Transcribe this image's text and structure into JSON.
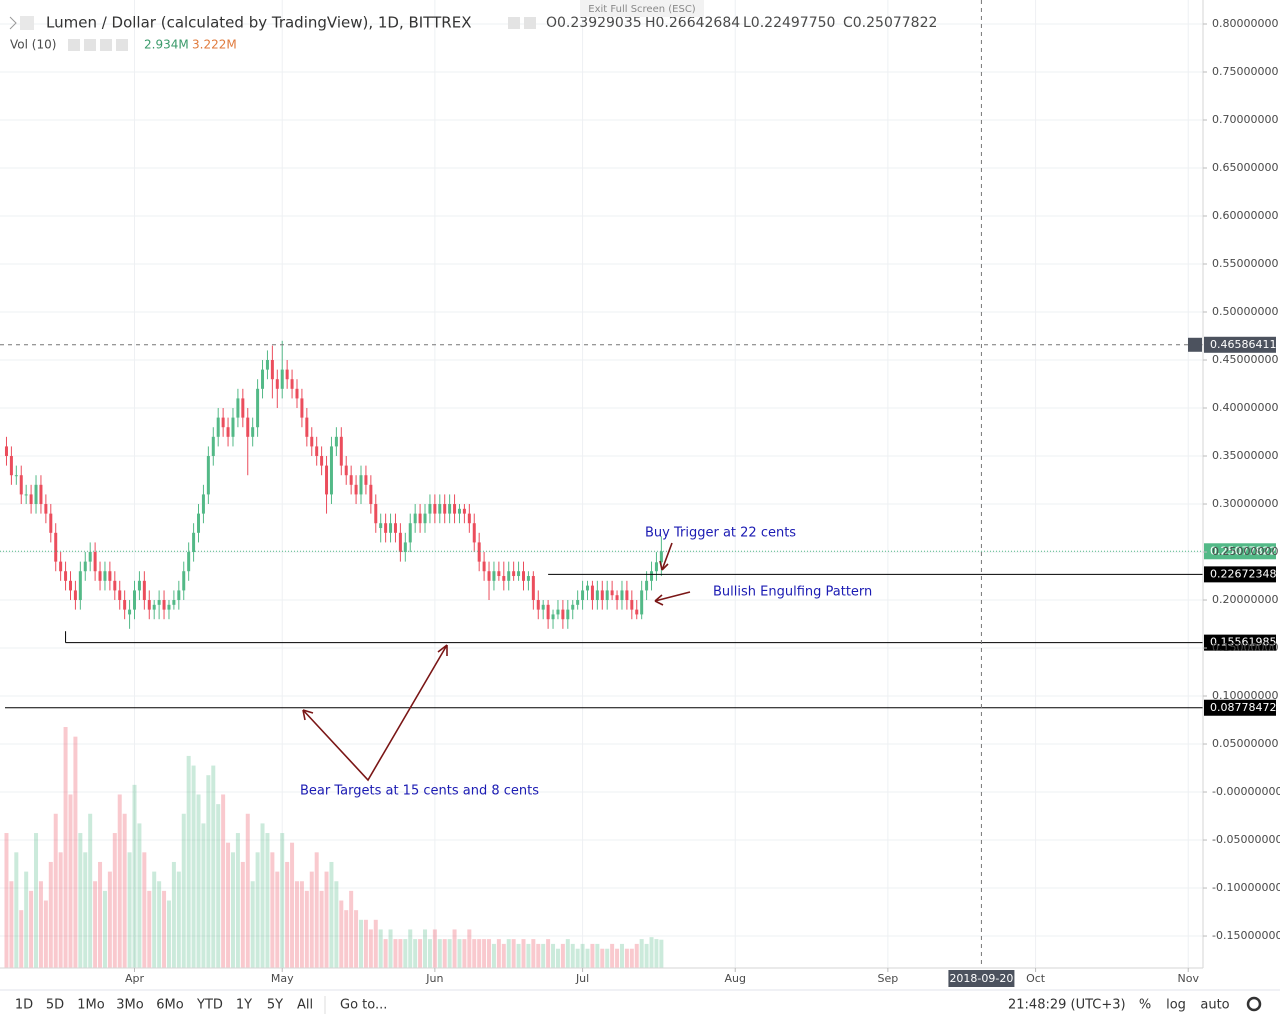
{
  "chart_data": {
    "type": "candlestick",
    "title": "Lumen / Dollar (calculated by TradingView), 1D, BITTREX",
    "ohlc": [
      "O0.23929035",
      "H0.26642684",
      "L0.22497750",
      "C0.25077822"
    ],
    "volume_label": "Vol (10)",
    "volume_readouts": [
      "2.934M",
      "3.222M"
    ],
    "x": [
      0,
      1,
      2,
      3,
      4,
      5,
      6,
      7,
      8,
      9,
      10,
      11,
      12,
      13,
      14,
      15,
      16,
      17,
      18,
      19,
      20,
      21,
      22,
      23,
      24,
      25,
      26,
      27,
      28,
      29,
      30,
      31,
      32,
      33,
      34,
      35,
      36,
      37,
      38,
      39,
      40,
      41,
      42,
      43,
      44,
      45,
      46,
      47,
      48,
      49,
      50,
      51,
      52,
      53,
      54,
      55,
      56,
      57,
      58,
      59,
      60,
      61,
      62,
      63,
      64,
      65,
      66,
      67,
      68,
      69,
      70,
      71,
      72,
      73,
      74,
      75,
      76,
      77,
      78,
      79,
      80,
      81,
      82,
      83,
      84,
      85,
      86,
      87,
      88,
      89,
      90,
      91,
      92,
      93,
      94,
      95,
      96,
      97,
      98,
      99,
      100,
      101,
      102,
      103,
      104,
      105,
      106,
      107,
      108,
      109,
      110,
      111,
      112,
      113,
      114,
      115,
      116,
      117,
      118,
      119,
      120,
      121,
      122,
      123,
      124,
      125,
      126,
      127,
      128,
      129,
      130,
      131,
      132,
      133
    ],
    "candles": [
      [
        0.36,
        0.37,
        0.34,
        0.35
      ],
      [
        0.35,
        0.36,
        0.32,
        0.33
      ],
      [
        0.33,
        0.34,
        0.32,
        0.33
      ],
      [
        0.33,
        0.34,
        0.3,
        0.31
      ],
      [
        0.31,
        0.32,
        0.3,
        0.31
      ],
      [
        0.31,
        0.32,
        0.29,
        0.3
      ],
      [
        0.3,
        0.33,
        0.29,
        0.32
      ],
      [
        0.32,
        0.33,
        0.29,
        0.3
      ],
      [
        0.3,
        0.31,
        0.28,
        0.29
      ],
      [
        0.29,
        0.3,
        0.26,
        0.27
      ],
      [
        0.27,
        0.28,
        0.23,
        0.24
      ],
      [
        0.24,
        0.25,
        0.22,
        0.23
      ],
      [
        0.23,
        0.24,
        0.21,
        0.22
      ],
      [
        0.22,
        0.23,
        0.2,
        0.21
      ],
      [
        0.21,
        0.22,
        0.19,
        0.2
      ],
      [
        0.2,
        0.24,
        0.19,
        0.23
      ],
      [
        0.23,
        0.25,
        0.22,
        0.24
      ],
      [
        0.24,
        0.26,
        0.23,
        0.25
      ],
      [
        0.25,
        0.26,
        0.22,
        0.23
      ],
      [
        0.23,
        0.24,
        0.21,
        0.22
      ],
      [
        0.22,
        0.24,
        0.21,
        0.23
      ],
      [
        0.23,
        0.24,
        0.21,
        0.22
      ],
      [
        0.22,
        0.23,
        0.2,
        0.21
      ],
      [
        0.21,
        0.22,
        0.19,
        0.2
      ],
      [
        0.2,
        0.21,
        0.18,
        0.19
      ],
      [
        0.185,
        0.2,
        0.17,
        0.19
      ],
      [
        0.19,
        0.22,
        0.18,
        0.21
      ],
      [
        0.21,
        0.23,
        0.2,
        0.22
      ],
      [
        0.22,
        0.23,
        0.19,
        0.2
      ],
      [
        0.2,
        0.21,
        0.18,
        0.19
      ],
      [
        0.19,
        0.2,
        0.18,
        0.195
      ],
      [
        0.195,
        0.21,
        0.18,
        0.2
      ],
      [
        0.2,
        0.21,
        0.18,
        0.19
      ],
      [
        0.19,
        0.2,
        0.18,
        0.195
      ],
      [
        0.195,
        0.21,
        0.19,
        0.2
      ],
      [
        0.2,
        0.22,
        0.19,
        0.21
      ],
      [
        0.21,
        0.24,
        0.2,
        0.23
      ],
      [
        0.23,
        0.26,
        0.22,
        0.25
      ],
      [
        0.25,
        0.28,
        0.24,
        0.27
      ],
      [
        0.27,
        0.3,
        0.26,
        0.29
      ],
      [
        0.29,
        0.32,
        0.28,
        0.31
      ],
      [
        0.31,
        0.36,
        0.3,
        0.35
      ],
      [
        0.35,
        0.38,
        0.34,
        0.37
      ],
      [
        0.37,
        0.4,
        0.36,
        0.39
      ],
      [
        0.39,
        0.4,
        0.37,
        0.38
      ],
      [
        0.38,
        0.39,
        0.36,
        0.37
      ],
      [
        0.37,
        0.4,
        0.36,
        0.39
      ],
      [
        0.39,
        0.42,
        0.38,
        0.41
      ],
      [
        0.41,
        0.42,
        0.38,
        0.39
      ],
      [
        0.39,
        0.4,
        0.33,
        0.37
      ],
      [
        0.37,
        0.39,
        0.36,
        0.38
      ],
      [
        0.38,
        0.43,
        0.37,
        0.42
      ],
      [
        0.42,
        0.45,
        0.41,
        0.44
      ],
      [
        0.44,
        0.46,
        0.43,
        0.45
      ],
      [
        0.45,
        0.465,
        0.41,
        0.43
      ],
      [
        0.43,
        0.44,
        0.4,
        0.42
      ],
      [
        0.42,
        0.47,
        0.41,
        0.44
      ],
      [
        0.44,
        0.45,
        0.42,
        0.43
      ],
      [
        0.43,
        0.44,
        0.41,
        0.42
      ],
      [
        0.42,
        0.43,
        0.4,
        0.41
      ],
      [
        0.41,
        0.42,
        0.38,
        0.39
      ],
      [
        0.39,
        0.4,
        0.36,
        0.37
      ],
      [
        0.37,
        0.38,
        0.35,
        0.36
      ],
      [
        0.36,
        0.37,
        0.34,
        0.35
      ],
      [
        0.35,
        0.36,
        0.33,
        0.34
      ],
      [
        0.34,
        0.35,
        0.29,
        0.31
      ],
      [
        0.31,
        0.37,
        0.3,
        0.36
      ],
      [
        0.36,
        0.38,
        0.35,
        0.37
      ],
      [
        0.37,
        0.38,
        0.33,
        0.34
      ],
      [
        0.34,
        0.35,
        0.32,
        0.33
      ],
      [
        0.33,
        0.34,
        0.31,
        0.32
      ],
      [
        0.32,
        0.33,
        0.3,
        0.31
      ],
      [
        0.31,
        0.34,
        0.3,
        0.33
      ],
      [
        0.33,
        0.34,
        0.31,
        0.32
      ],
      [
        0.32,
        0.33,
        0.29,
        0.3
      ],
      [
        0.3,
        0.31,
        0.27,
        0.28
      ],
      [
        0.275,
        0.29,
        0.26,
        0.28
      ],
      [
        0.28,
        0.29,
        0.26,
        0.27
      ],
      [
        0.27,
        0.29,
        0.26,
        0.28
      ],
      [
        0.28,
        0.29,
        0.26,
        0.27
      ],
      [
        0.27,
        0.28,
        0.24,
        0.25
      ],
      [
        0.25,
        0.27,
        0.24,
        0.26
      ],
      [
        0.26,
        0.29,
        0.25,
        0.28
      ],
      [
        0.28,
        0.3,
        0.27,
        0.29
      ],
      [
        0.29,
        0.3,
        0.27,
        0.28
      ],
      [
        0.28,
        0.3,
        0.27,
        0.29
      ],
      [
        0.29,
        0.31,
        0.28,
        0.3
      ],
      [
        0.3,
        0.31,
        0.28,
        0.29
      ],
      [
        0.29,
        0.31,
        0.28,
        0.3
      ],
      [
        0.3,
        0.31,
        0.28,
        0.29
      ],
      [
        0.29,
        0.31,
        0.28,
        0.3
      ],
      [
        0.3,
        0.31,
        0.28,
        0.29
      ],
      [
        0.29,
        0.3,
        0.28,
        0.295
      ],
      [
        0.295,
        0.3,
        0.28,
        0.29
      ],
      [
        0.29,
        0.3,
        0.27,
        0.28
      ],
      [
        0.28,
        0.29,
        0.25,
        0.26
      ],
      [
        0.26,
        0.27,
        0.23,
        0.24
      ],
      [
        0.24,
        0.25,
        0.22,
        0.23
      ],
      [
        0.23,
        0.24,
        0.2,
        0.22
      ],
      [
        0.22,
        0.24,
        0.21,
        0.23
      ],
      [
        0.23,
        0.24,
        0.22,
        0.225
      ],
      [
        0.225,
        0.24,
        0.21,
        0.22
      ],
      [
        0.22,
        0.24,
        0.21,
        0.23
      ],
      [
        0.23,
        0.24,
        0.22,
        0.225
      ],
      [
        0.225,
        0.24,
        0.22,
        0.23
      ],
      [
        0.23,
        0.24,
        0.21,
        0.22
      ],
      [
        0.22,
        0.23,
        0.21,
        0.225
      ],
      [
        0.225,
        0.23,
        0.19,
        0.2
      ],
      [
        0.2,
        0.21,
        0.18,
        0.19
      ],
      [
        0.19,
        0.2,
        0.18,
        0.195
      ],
      [
        0.195,
        0.2,
        0.17,
        0.18
      ],
      [
        0.18,
        0.19,
        0.17,
        0.185
      ],
      [
        0.185,
        0.2,
        0.18,
        0.19
      ],
      [
        0.19,
        0.2,
        0.17,
        0.18
      ],
      [
        0.18,
        0.2,
        0.17,
        0.19
      ],
      [
        0.19,
        0.2,
        0.18,
        0.195
      ],
      [
        0.195,
        0.21,
        0.19,
        0.2
      ],
      [
        0.2,
        0.22,
        0.19,
        0.21
      ],
      [
        0.21,
        0.22,
        0.2,
        0.215
      ],
      [
        0.215,
        0.22,
        0.19,
        0.2
      ],
      [
        0.2,
        0.22,
        0.19,
        0.21
      ],
      [
        0.21,
        0.22,
        0.19,
        0.2
      ],
      [
        0.2,
        0.22,
        0.19,
        0.21
      ],
      [
        0.21,
        0.22,
        0.2,
        0.205
      ],
      [
        0.205,
        0.21,
        0.19,
        0.2
      ],
      [
        0.2,
        0.22,
        0.19,
        0.21
      ],
      [
        0.21,
        0.22,
        0.19,
        0.2
      ],
      [
        0.2,
        0.21,
        0.18,
        0.19
      ],
      [
        0.19,
        0.2,
        0.18,
        0.185
      ],
      [
        0.185,
        0.22,
        0.18,
        0.21
      ],
      [
        0.21,
        0.23,
        0.2,
        0.22
      ],
      [
        0.22,
        0.24,
        0.21,
        0.23
      ],
      [
        0.23,
        0.25,
        0.22,
        0.2393
      ],
      [
        0.23929035,
        0.26642684,
        0.2249775,
        0.25077822
      ]
    ],
    "volume": [
      14,
      9,
      12,
      6,
      10,
      8,
      14,
      9,
      7,
      11,
      16,
      12,
      25,
      18,
      24,
      14,
      12,
      16,
      9,
      11,
      8,
      10,
      14,
      18,
      16,
      12,
      19,
      15,
      12,
      8,
      10,
      9,
      8,
      7,
      11,
      10,
      16,
      22,
      21,
      18,
      15,
      20,
      21,
      17,
      18,
      13,
      12,
      14,
      11,
      16,
      9,
      12,
      15,
      14,
      12,
      10,
      14,
      11,
      13,
      9,
      9,
      8,
      10,
      12,
      8,
      10,
      11,
      9,
      7,
      6,
      8,
      6,
      5,
      5,
      4,
      5,
      4,
      3,
      4,
      3,
      3,
      3,
      4,
      3,
      3,
      4,
      3,
      4,
      3,
      3,
      3,
      4,
      3,
      3,
      4,
      3,
      3,
      3,
      3,
      2.5,
      3,
      2.5,
      3,
      3,
      2.5,
      3,
      2.5,
      3,
      2.5,
      2.5,
      3,
      2.5,
      2,
      2.5,
      3,
      2.5,
      2,
      2.5,
      2,
      2.5,
      2.5,
      2,
      2,
      2.5,
      2,
      2.5,
      2,
      2,
      2.5,
      3,
      2.5,
      3.2,
      3,
      2.934
    ],
    "up_color": "#53b987",
    "down_color": "#eb4d5c",
    "xlim": [
      -0.3,
      243
    ],
    "xticks": [
      {
        "value": 26,
        "label": "Apr"
      },
      {
        "value": 56,
        "label": "May"
      },
      {
        "value": 87,
        "label": "Jun"
      },
      {
        "value": 117,
        "label": "Jul"
      },
      {
        "value": 148,
        "label": "Aug"
      },
      {
        "value": 179,
        "label": "Sep"
      },
      {
        "value": 209,
        "label": "Oct"
      },
      {
        "value": 240,
        "label": "Nov"
      }
    ],
    "ylim": [
      -0.1833,
      0.825
    ],
    "yticks": [
      {
        "value": 0.8,
        "label": "0.80000000"
      },
      {
        "value": 0.75,
        "label": "0.75000000"
      },
      {
        "value": 0.7,
        "label": "0.70000000"
      },
      {
        "value": 0.65,
        "label": "0.65000000"
      },
      {
        "value": 0.6,
        "label": "0.60000000"
      },
      {
        "value": 0.55,
        "label": "0.55000000"
      },
      {
        "value": 0.5,
        "label": "0.50000000"
      },
      {
        "value": 0.45,
        "label": "0.45000000"
      },
      {
        "value": 0.4,
        "label": "0.40000000"
      },
      {
        "value": 0.35,
        "label": "0.35000000"
      },
      {
        "value": 0.3,
        "label": "0.30000000"
      },
      {
        "value": 0.25,
        "label": "0.25000000"
      },
      {
        "value": 0.2,
        "label": "0.20000000"
      },
      {
        "value": 0.15,
        "label": "0.15000000"
      },
      {
        "value": 0.1,
        "label": "0.10000000"
      },
      {
        "value": 0.05,
        "label": "0.05000000"
      },
      {
        "value": 0,
        "label": "-0.00000000"
      },
      {
        "value": -0.05,
        "label": "-0.05000000"
      },
      {
        "value": -0.1,
        "label": "-0.10000000"
      },
      {
        "value": -0.15,
        "label": "-0.15000000"
      }
    ],
    "grid": true,
    "levels": [
      {
        "value": 0.22672348,
        "x_start": 110
      },
      {
        "value": 0.15561985,
        "x_start": 12
      },
      {
        "value": 0.08778472
      }
    ],
    "crosshair": {
      "x": 198,
      "x_label": "2018-09-20",
      "value": 0.46586411
    },
    "annotations": [
      "Buy Trigger at 22 cents",
      "Bullish Engulfing Pattern",
      "Bear Targets at 15 cents and 8 cents"
    ]
  },
  "ui": {
    "exit_fullscreen": "Exit Full Screen (ESC)",
    "ranges": [
      "1D",
      "5D",
      "1Mo",
      "3Mo",
      "6Mo",
      "YTD",
      "1Y",
      "5Y",
      "All"
    ],
    "goto": "Go to...",
    "clock": "21:48:29 (UTC+3)",
    "buttons": [
      "%",
      "log",
      "auto"
    ]
  }
}
